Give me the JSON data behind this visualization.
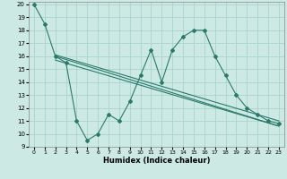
{
  "title": "",
  "xlabel": "Humidex (Indice chaleur)",
  "bg_color": "#cce9e4",
  "grid_color": "#aad4ce",
  "line_color": "#2a7a6a",
  "xlim": [
    -0.5,
    23.5
  ],
  "ylim": [
    9,
    20.2
  ],
  "yticks": [
    9,
    10,
    11,
    12,
    13,
    14,
    15,
    16,
    17,
    18,
    19,
    20
  ],
  "xticks": [
    0,
    1,
    2,
    3,
    4,
    5,
    6,
    7,
    8,
    9,
    10,
    11,
    12,
    13,
    14,
    15,
    16,
    17,
    18,
    19,
    20,
    21,
    22,
    23
  ],
  "zigzag_x": [
    0,
    1,
    2,
    3,
    4,
    5,
    6,
    7,
    8,
    9,
    10,
    11,
    12,
    13,
    14,
    15,
    16,
    17,
    18,
    19,
    20,
    21,
    22,
    23
  ],
  "zigzag_y": [
    20,
    18.5,
    16,
    15.5,
    11,
    9.5,
    10,
    11.5,
    11,
    12.5,
    14.5,
    16.5,
    14,
    16.5,
    17.5,
    18,
    18,
    16,
    14.5,
    13,
    12,
    11.5,
    11,
    10.8
  ],
  "line2_x": [
    2,
    23
  ],
  "line2_y": [
    16.1,
    11.0
  ],
  "line3_x": [
    2,
    23
  ],
  "line3_y": [
    16.0,
    10.6
  ],
  "line4_x": [
    2,
    23
  ],
  "line4_y": [
    15.7,
    10.6
  ]
}
